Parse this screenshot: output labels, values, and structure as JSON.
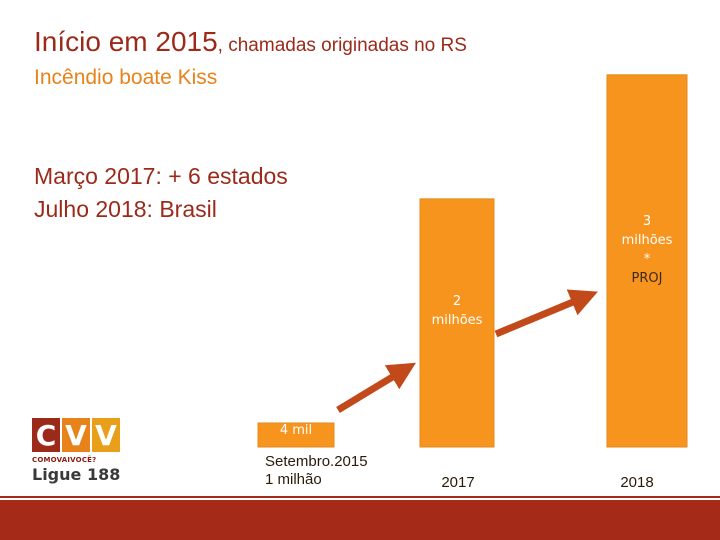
{
  "header": {
    "title_main": "Início em 2015",
    "title_sub": ", chamadas originadas no RS",
    "subtitle": "Incêndio boate Kiss",
    "notes": [
      "Março 2017:  + 6 estados",
      "Julho 2018: Brasil"
    ]
  },
  "logo": {
    "letters": [
      "C",
      "V",
      "V"
    ],
    "letter_colors": [
      "#9b2a1a",
      "#e8821a",
      "#e8a01a"
    ],
    "tagline": "COMOVAIVOCÊ?",
    "phone": "Ligue 188"
  },
  "colors": {
    "bar": "#f7941d",
    "bar_border": "#e08a1a",
    "arrow": "#c24a1a",
    "band": "#a52a17"
  },
  "chart_data": {
    "type": "bar",
    "categories": [
      "Setembro.2015\n1 milhão",
      "2017",
      "2018"
    ],
    "values": [
      4000,
      2000000,
      3000000
    ],
    "data_labels": [
      "4 mil",
      "2\nmilhões",
      "3\nmilhões\n*\nPROJ"
    ],
    "ylim": [
      0,
      3200000
    ],
    "grid": false,
    "legend": "none",
    "arrows": [
      "Setembro.2015 → 2017",
      "2017 → 2018"
    ]
  }
}
